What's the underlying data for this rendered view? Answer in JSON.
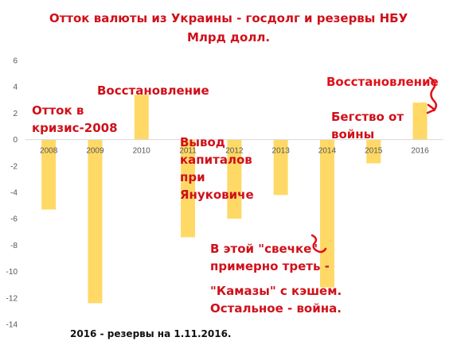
{
  "chart_data": {
    "type": "bar",
    "title": "Отток валюты из Украины - госдолг и резервы НБУ",
    "subtitle": "Млрд долл.",
    "categories": [
      "2008",
      "2009",
      "2010",
      "2011",
      "2012",
      "2013",
      "2014",
      "2015",
      "2016"
    ],
    "values": [
      -5.3,
      -12.4,
      3.4,
      -7.4,
      -6.0,
      -4.2,
      -11.2,
      -1.8,
      2.8
    ],
    "ylim": [
      -14,
      6
    ],
    "yticks": [
      "6",
      "4",
      "2",
      "0",
      "-2",
      "-4",
      "-6",
      "-8",
      "-10",
      "-12",
      "-14"
    ],
    "grid": false,
    "bar_color": "#ffd966",
    "annotations": [
      "Отток в\nкризис-2008",
      "Восстановление",
      "Вывод\nкапиталов\nпри\nЯнуковиче",
      "В этой \"свечке\"\nпримерно треть -",
      "\"Камазы\" с кэшем.\nОстальное - война.",
      "Восстановление",
      "Бегство от\nвойны"
    ],
    "footnote": "2016 - резервы на 1.11.2016."
  }
}
